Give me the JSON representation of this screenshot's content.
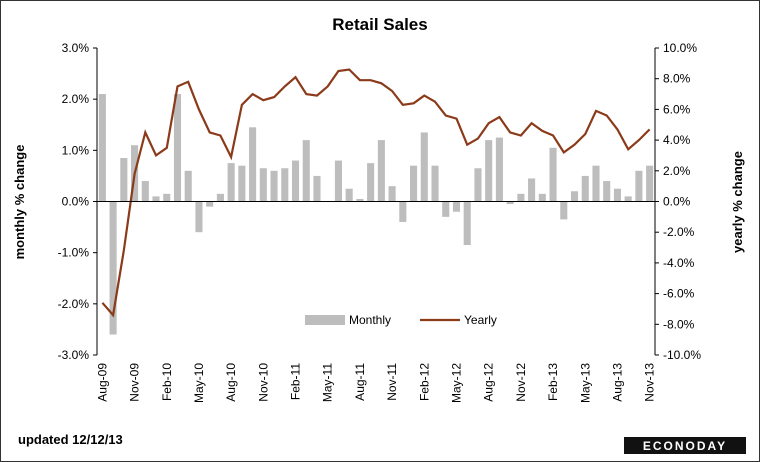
{
  "chart_data": {
    "type": "bar_line",
    "title": "Retail Sales",
    "y_label": "monthly % change",
    "y2_label": "yearly % change",
    "footer": "updated 12/12/13",
    "logo": "ECONODAY",
    "categories": [
      "Aug-09",
      null,
      null,
      "Nov-09",
      null,
      null,
      "Feb-10",
      null,
      null,
      "May-10",
      null,
      null,
      "Aug-10",
      null,
      null,
      "Nov-10",
      null,
      null,
      "Feb-11",
      null,
      null,
      "May-11",
      null,
      null,
      "Aug-11",
      null,
      null,
      "Nov-11",
      null,
      null,
      "Feb-12",
      null,
      null,
      "May-12",
      null,
      null,
      "Aug-12",
      null,
      null,
      "Nov-12",
      null,
      null,
      "Feb-13",
      null,
      null,
      "May-13",
      null,
      null,
      "Aug-13",
      null,
      null,
      "Nov-13"
    ],
    "series": [
      {
        "name": "Monthly",
        "type": "bar",
        "color": "#bdbdbd",
        "axis": "y",
        "values": [
          2.1,
          -2.6,
          0.85,
          1.1,
          0.4,
          0.1,
          0.15,
          2.1,
          0.6,
          -0.6,
          -0.1,
          0.15,
          0.75,
          0.7,
          1.45,
          0.65,
          0.6,
          0.65,
          0.8,
          1.2,
          0.5,
          0.0,
          0.8,
          0.25,
          0.05,
          0.75,
          1.2,
          0.3,
          -0.4,
          0.7,
          1.35,
          0.7,
          -0.3,
          -0.2,
          -0.85,
          0.65,
          1.2,
          1.25,
          -0.05,
          0.15,
          0.45,
          0.15,
          1.05,
          -0.35,
          0.2,
          0.5,
          0.7,
          0.4,
          0.25,
          0.1,
          0.6,
          0.7
        ]
      },
      {
        "name": "Yearly",
        "type": "line",
        "color": "#8b3a1a",
        "axis": "y2",
        "values": [
          -6.6,
          -7.4,
          -3.2,
          1.8,
          4.5,
          3.0,
          3.5,
          7.5,
          7.8,
          6.0,
          4.5,
          4.3,
          2.9,
          6.3,
          7.0,
          6.6,
          6.8,
          7.5,
          8.1,
          7.0,
          6.9,
          7.5,
          8.5,
          8.6,
          7.9,
          7.9,
          7.7,
          7.2,
          6.3,
          6.4,
          6.9,
          6.5,
          5.6,
          5.4,
          3.7,
          4.1,
          5.1,
          5.5,
          4.5,
          4.3,
          5.1,
          4.6,
          4.3,
          3.2,
          3.7,
          4.4,
          5.9,
          5.6,
          4.7,
          3.4,
          4.0,
          4.7
        ]
      }
    ],
    "ylim": [
      -3,
      3
    ],
    "yticks": [
      {
        "value": -3,
        "label": "-3.0%"
      },
      {
        "value": -2,
        "label": "-2.0%"
      },
      {
        "value": -1,
        "label": "-1.0%"
      },
      {
        "value": 0,
        "label": "0.0%"
      },
      {
        "value": 1,
        "label": "1.0%"
      },
      {
        "value": 2,
        "label": "2.0%"
      },
      {
        "value": 3,
        "label": "3.0%"
      }
    ],
    "y2lim": [
      -10,
      10
    ],
    "y2ticks": [
      {
        "value": -10,
        "label": "-10.0%"
      },
      {
        "value": -8,
        "label": "-8.0%"
      },
      {
        "value": -6,
        "label": "-6.0%"
      },
      {
        "value": -4,
        "label": "-4.0%"
      },
      {
        "value": -2,
        "label": "-2.0%"
      },
      {
        "value": 0,
        "label": "0.0%"
      },
      {
        "value": 2,
        "label": "2.0%"
      },
      {
        "value": 4,
        "label": "4.0%"
      },
      {
        "value": 6,
        "label": "6.0%"
      },
      {
        "value": 8,
        "label": "8.0%"
      },
      {
        "value": 10,
        "label": "10.0%"
      }
    ]
  }
}
